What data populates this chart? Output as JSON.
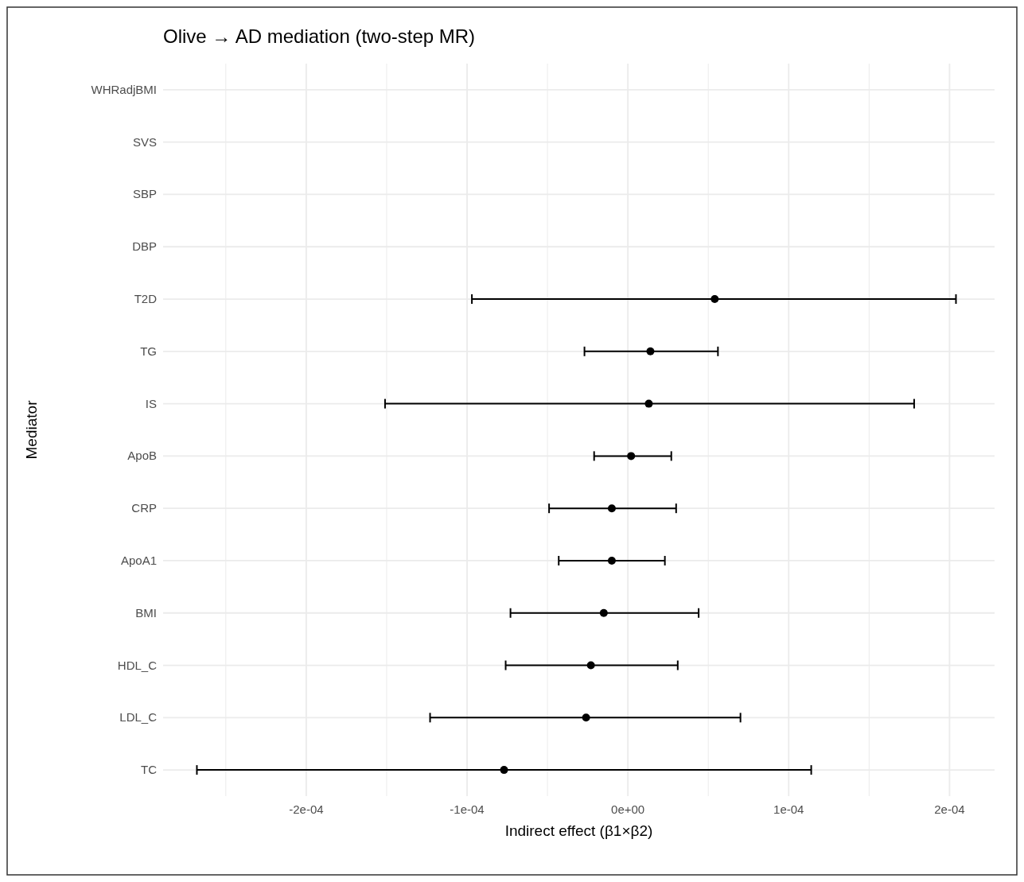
{
  "chart_data": {
    "type": "scatter",
    "orientation": "horizontal",
    "title": "Olive → AD mediation (two-step MR)",
    "xlabel": "Indirect effect (β1×β2)",
    "ylabel": "Mediator",
    "categories": [
      "WHRadjBMI",
      "SVS",
      "SBP",
      "DBP",
      "T2D",
      "TG",
      "IS",
      "ApoB",
      "CRP",
      "ApoA1",
      "BMI",
      "HDL_C",
      "LDL_C",
      "TC"
    ],
    "values": [
      null,
      null,
      null,
      null,
      5.4e-05,
      1.4e-05,
      1.3e-05,
      2e-06,
      -1e-05,
      -1e-05,
      -1.5e-05,
      -2.3e-05,
      -2.6e-05,
      -7.7e-05
    ],
    "errors": [
      null,
      null,
      null,
      null,
      [
        -9.7e-05,
        0.000204
      ],
      [
        -2.7e-05,
        5.6e-05
      ],
      [
        -0.000151,
        0.000178
      ],
      [
        -2.1e-05,
        2.7e-05
      ],
      [
        -4.9e-05,
        3e-05
      ],
      [
        -4.3e-05,
        2.3e-05
      ],
      [
        -7.3e-05,
        4.4e-05
      ],
      [
        -7.6e-05,
        3.1e-05
      ],
      [
        -0.000123,
        7e-05
      ],
      [
        -0.000268,
        0.000114
      ]
    ],
    "color": "#000000",
    "marker": "circle",
    "grid": true,
    "xlim": [
      -0.000289,
      0.000228
    ],
    "xticks": [
      {
        "value": -0.00025,
        "label": null
      },
      {
        "value": -0.0002,
        "label": "-2e-04"
      },
      {
        "value": -0.00015,
        "label": null
      },
      {
        "value": -0.0001,
        "label": "-1e-04"
      },
      {
        "value": -5e-05,
        "label": null
      },
      {
        "value": 0,
        "label": "0e+00"
      },
      {
        "value": 5e-05,
        "label": null
      },
      {
        "value": 0.0001,
        "label": "1e-04"
      },
      {
        "value": 0.00015,
        "label": null
      },
      {
        "value": 0.0002,
        "label": "2e-04"
      }
    ]
  }
}
